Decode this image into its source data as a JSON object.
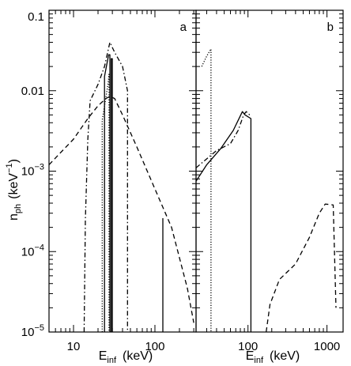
{
  "ylabel": {
    "main": "n",
    "sub": "ph",
    "unit_pre": "(keV",
    "unit_sup": "−1",
    "unit_post": ")"
  },
  "y_ticks": [
    {
      "value": 0.1,
      "label": "0.1"
    },
    {
      "value": 0.01,
      "label": "0.01"
    },
    {
      "value": 0.001,
      "label": "10",
      "sup": "−3"
    },
    {
      "value": 0.0001,
      "label": "10",
      "sup": "−4"
    },
    {
      "value": 1e-05,
      "label": "10",
      "sup": "−5"
    }
  ],
  "chart_data": [
    {
      "type": "line",
      "panel": "a",
      "xscale": "log",
      "yscale": "log",
      "xlim": [
        5,
        320
      ],
      "ylim": [
        1e-05,
        0.1
      ],
      "xlabel": {
        "main": "E",
        "sub": "inf",
        "unit": "(keV)"
      },
      "x_ticks": [
        {
          "value": 10,
          "label": "10"
        },
        {
          "value": 100,
          "label": "100"
        }
      ],
      "series": [
        {
          "style": "solid",
          "points": [
            [
              24,
              1e-05
            ],
            [
              24,
              0.015
            ],
            [
              27,
              0.028
            ],
            [
              28,
              0.028
            ],
            [
              28,
              1e-05
            ],
            [
              29,
              1e-05
            ],
            [
              29,
              0.025
            ],
            [
              30,
              0.025
            ],
            [
              30,
              1e-05
            ]
          ]
        },
        {
          "style": "solid",
          "points": [
            [
              125,
              1e-05
            ],
            [
              125,
              0.00026
            ]
          ]
        },
        {
          "style": "dotted",
          "points": [
            [
              22.5,
              1e-05
            ],
            [
              22.5,
              0.0043
            ],
            [
              26.5,
              0.012
            ],
            [
              27.3,
              0.016
            ],
            [
              27.3,
              1e-05
            ]
          ]
        },
        {
          "style": "dashdot",
          "points": [
            [
              13.5,
              1e-05
            ],
            [
              14,
              0.00025
            ],
            [
              15,
              0.0025
            ],
            [
              16,
              0.0075
            ],
            [
              20,
              0.012
            ],
            [
              24,
              0.02
            ],
            [
              28,
              0.04
            ],
            [
              32,
              0.03
            ],
            [
              40,
              0.02
            ],
            [
              46,
              0.01
            ],
            [
              46,
              1e-05
            ]
          ]
        },
        {
          "style": "dashed",
          "points": [
            [
              5,
              0.0012
            ],
            [
              10,
              0.0025
            ],
            [
              15,
              0.0045
            ],
            [
              20,
              0.0065
            ],
            [
              25,
              0.008
            ],
            [
              28,
              0.0085
            ],
            [
              32,
              0.008
            ],
            [
              40,
              0.005
            ],
            [
              60,
              0.002
            ],
            [
              100,
              0.0006
            ],
            [
              160,
              0.0002
            ],
            [
              250,
              3.5e-05
            ],
            [
              300,
              1.3e-05
            ]
          ]
        }
      ]
    },
    {
      "type": "line",
      "panel": "b",
      "xscale": "log",
      "yscale": "log",
      "xlim": [
        22,
        1600
      ],
      "ylim": [
        1e-05,
        0.1
      ],
      "xlabel": {
        "main": "E",
        "sub": "inf",
        "unit": "(keV)"
      },
      "x_ticks": [
        {
          "value": 100,
          "label": "100"
        },
        {
          "value": 1000,
          "label": "1000"
        }
      ],
      "series": [
        {
          "style": "dotted",
          "points": [
            [
              26,
              0.02
            ],
            [
              30,
              0.027
            ],
            [
              34,
              0.033
            ],
            [
              34,
              1e-05
            ]
          ]
        },
        {
          "style": "solid",
          "points": [
            [
              22,
              0.00075
            ],
            [
              30,
              0.0012
            ],
            [
              45,
              0.0019
            ],
            [
              65,
              0.0032
            ],
            [
              85,
              0.0055
            ],
            [
              92,
              0.005
            ],
            [
              109,
              0.0045
            ],
            [
              109,
              1e-05
            ]
          ]
        },
        {
          "style": "dashdot",
          "points": [
            [
              22,
              0.0011
            ],
            [
              40,
              0.0018
            ],
            [
              60,
              0.0022
            ],
            [
              75,
              0.0032
            ],
            [
              88,
              0.005
            ],
            [
              95,
              0.0055
            ],
            [
              105,
              0.005
            ]
          ]
        },
        {
          "style": "dashed",
          "points": [
            [
              170,
              1e-05
            ],
            [
              190,
              2.2e-05
            ],
            [
              250,
              4.5e-05
            ],
            [
              400,
              7e-05
            ],
            [
              600,
              0.00015
            ],
            [
              800,
              0.0003
            ],
            [
              950,
              0.00039
            ],
            [
              1200,
              0.00038
            ],
            [
              1300,
              2e-05
            ]
          ]
        }
      ]
    }
  ]
}
